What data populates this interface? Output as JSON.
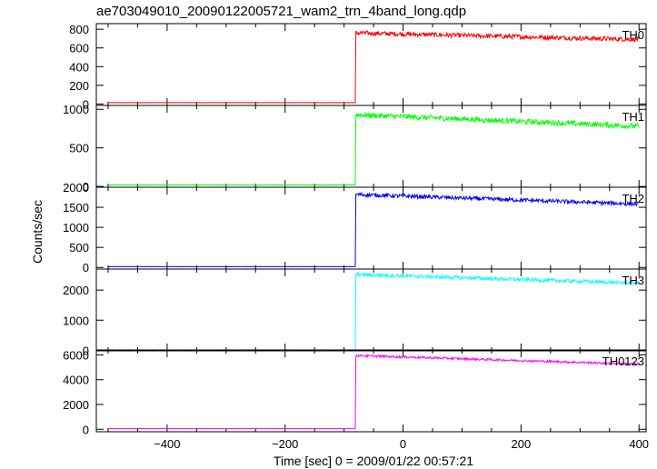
{
  "title": "ae703049010_20090122005721_wam2_trn_4band_long.qdp",
  "chart_data": {
    "type": "line",
    "title": "ae703049010_20090122005721_wam2_trn_4band_long.qdp",
    "xlabel": "Time [sec] 0 = 2009/01/22 00:57:21",
    "ylabel": "Counts/sec",
    "xlim": [
      -520,
      412
    ],
    "x_ticks": [
      -400,
      -200,
      0,
      200,
      400
    ],
    "grid": false,
    "legend": "none",
    "data_range": [
      -500,
      400
    ],
    "step_time": -80,
    "panels": [
      {
        "name": "TH0",
        "color": "#ff0000",
        "ylim": [
          -15,
          860
        ],
        "y_ticks": [
          0,
          200,
          400,
          600,
          800
        ],
        "pre_level": 15,
        "post_start": 760,
        "post_end": 690,
        "noise": 25
      },
      {
        "name": "TH1",
        "color": "#00ff00",
        "ylim": [
          -10,
          1050
        ],
        "y_ticks": [
          0,
          500,
          1000
        ],
        "pre_level": 20,
        "post_start": 930,
        "post_end": 780,
        "noise": 35
      },
      {
        "name": "TH2",
        "color": "#0000ff",
        "ylim": [
          -40,
          2000
        ],
        "y_ticks": [
          0,
          500,
          1000,
          1500,
          2000
        ],
        "pre_level": 20,
        "post_start": 1820,
        "post_end": 1580,
        "noise": 50
      },
      {
        "name": "TH3",
        "color": "#00ffff",
        "ylim": [
          -20,
          2700
        ],
        "y_ticks": [
          0,
          1000,
          2000
        ],
        "pre_level": 10,
        "post_start": 2520,
        "post_end": 2230,
        "noise": 60
      },
      {
        "name": "TH0123",
        "color": "#ff00ff",
        "ylim": [
          -200,
          6400
        ],
        "y_ticks": [
          0,
          2000,
          4000,
          6000
        ],
        "pre_level": 50,
        "post_start": 5950,
        "post_end": 5250,
        "noise": 90
      }
    ]
  }
}
